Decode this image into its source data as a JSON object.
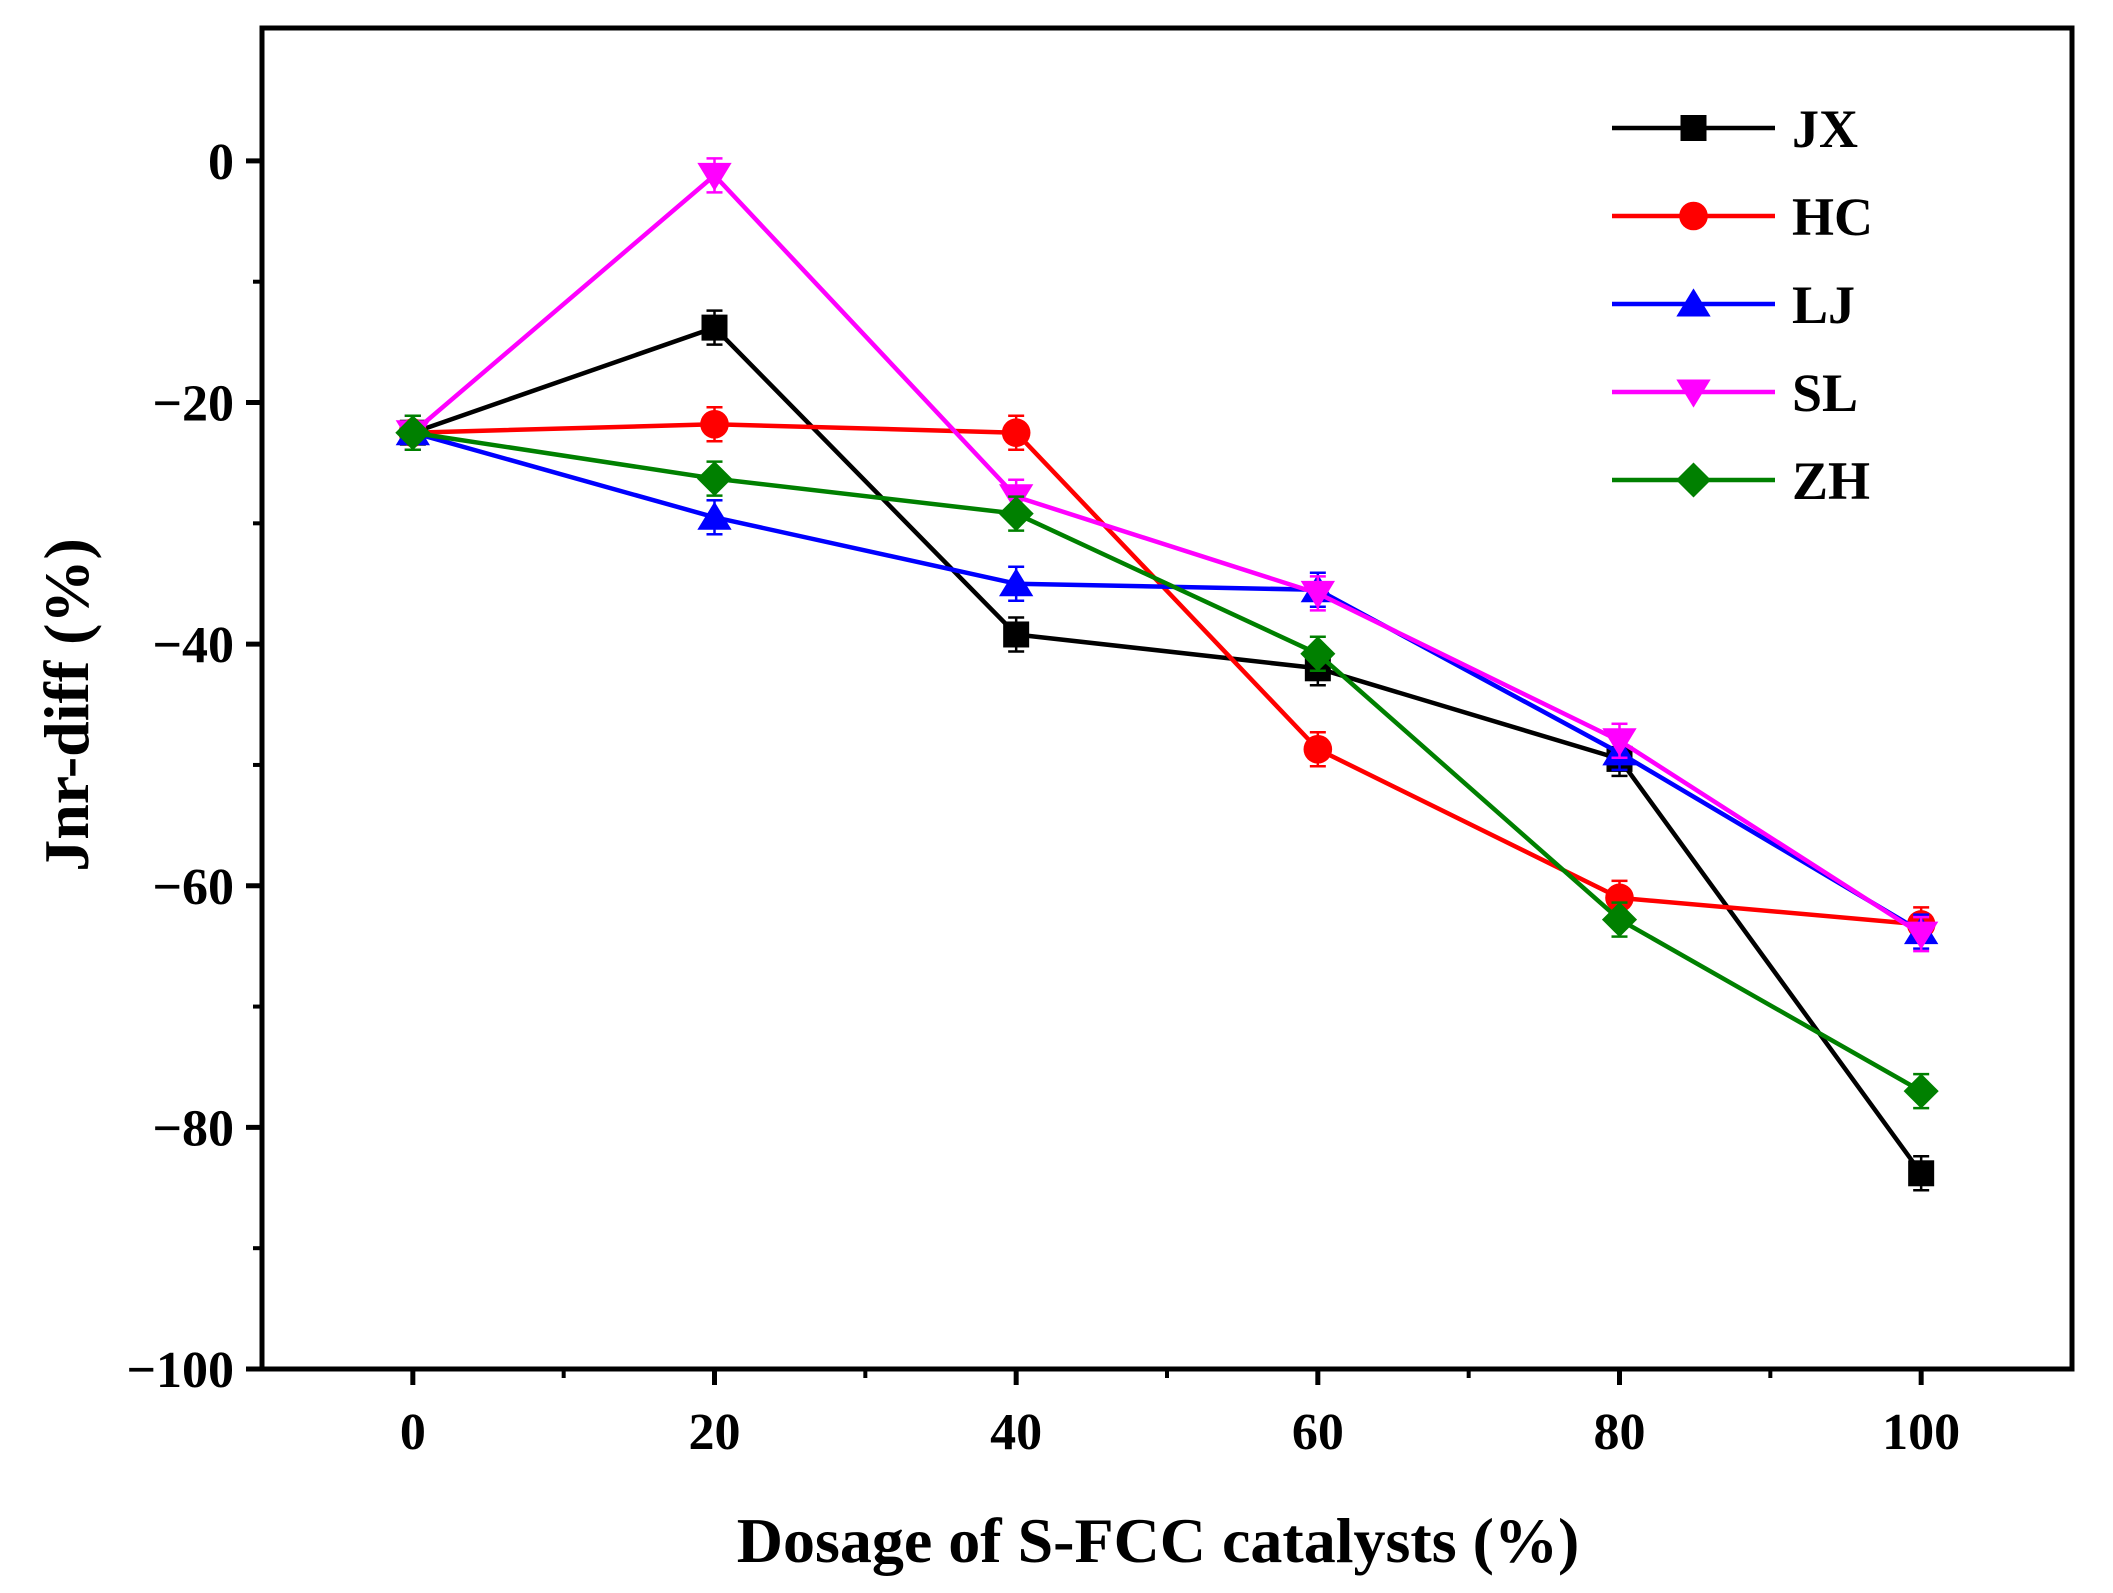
{
  "chart_data": {
    "type": "line",
    "title": "",
    "xlabel": "Dosage of S-FCC catalysts (%)",
    "ylabel": "Jnr-diff (%)",
    "xlim": [
      -10,
      110
    ],
    "ylim": [
      -100,
      11
    ],
    "x": [
      0,
      20,
      40,
      60,
      80,
      100
    ],
    "xticks": [
      0,
      20,
      40,
      60,
      80,
      100
    ],
    "xtick_labels": [
      "0",
      "20",
      "40",
      "60",
      "80",
      "100"
    ],
    "xminor": [
      10,
      30,
      50,
      70,
      90
    ],
    "yticks": [
      0,
      -20,
      -40,
      -60,
      -80,
      -100
    ],
    "ytick_labels": [
      "0",
      "−20",
      "−40",
      "−60",
      "−80",
      "−100"
    ],
    "yminor": [
      -10,
      -30,
      -50,
      -70,
      -90
    ],
    "grid": false,
    "legend_position": "top-right",
    "series": [
      {
        "name": "JX",
        "color": "#000000",
        "marker": "square",
        "values": [
          -22.5,
          -13.8,
          -39.2,
          -42.0,
          -49.5,
          -83.8
        ]
      },
      {
        "name": "HC",
        "color": "#ff0000",
        "marker": "circle",
        "values": [
          -22.5,
          -21.8,
          -22.5,
          -48.7,
          -61.0,
          -63.2
        ]
      },
      {
        "name": "LJ",
        "color": "#0000ff",
        "marker": "triangle-up",
        "values": [
          -22.5,
          -29.5,
          -35.0,
          -35.5,
          -49.0,
          -63.8
        ]
      },
      {
        "name": "SL",
        "color": "#ff00ff",
        "marker": "triangle-down",
        "values": [
          -22.5,
          -1.2,
          -27.8,
          -35.8,
          -48.0,
          -64.0
        ]
      },
      {
        "name": "ZH",
        "color": "#008000",
        "marker": "diamond",
        "values": [
          -22.5,
          -26.3,
          -29.2,
          -40.8,
          -62.8,
          -77.0
        ]
      }
    ]
  }
}
